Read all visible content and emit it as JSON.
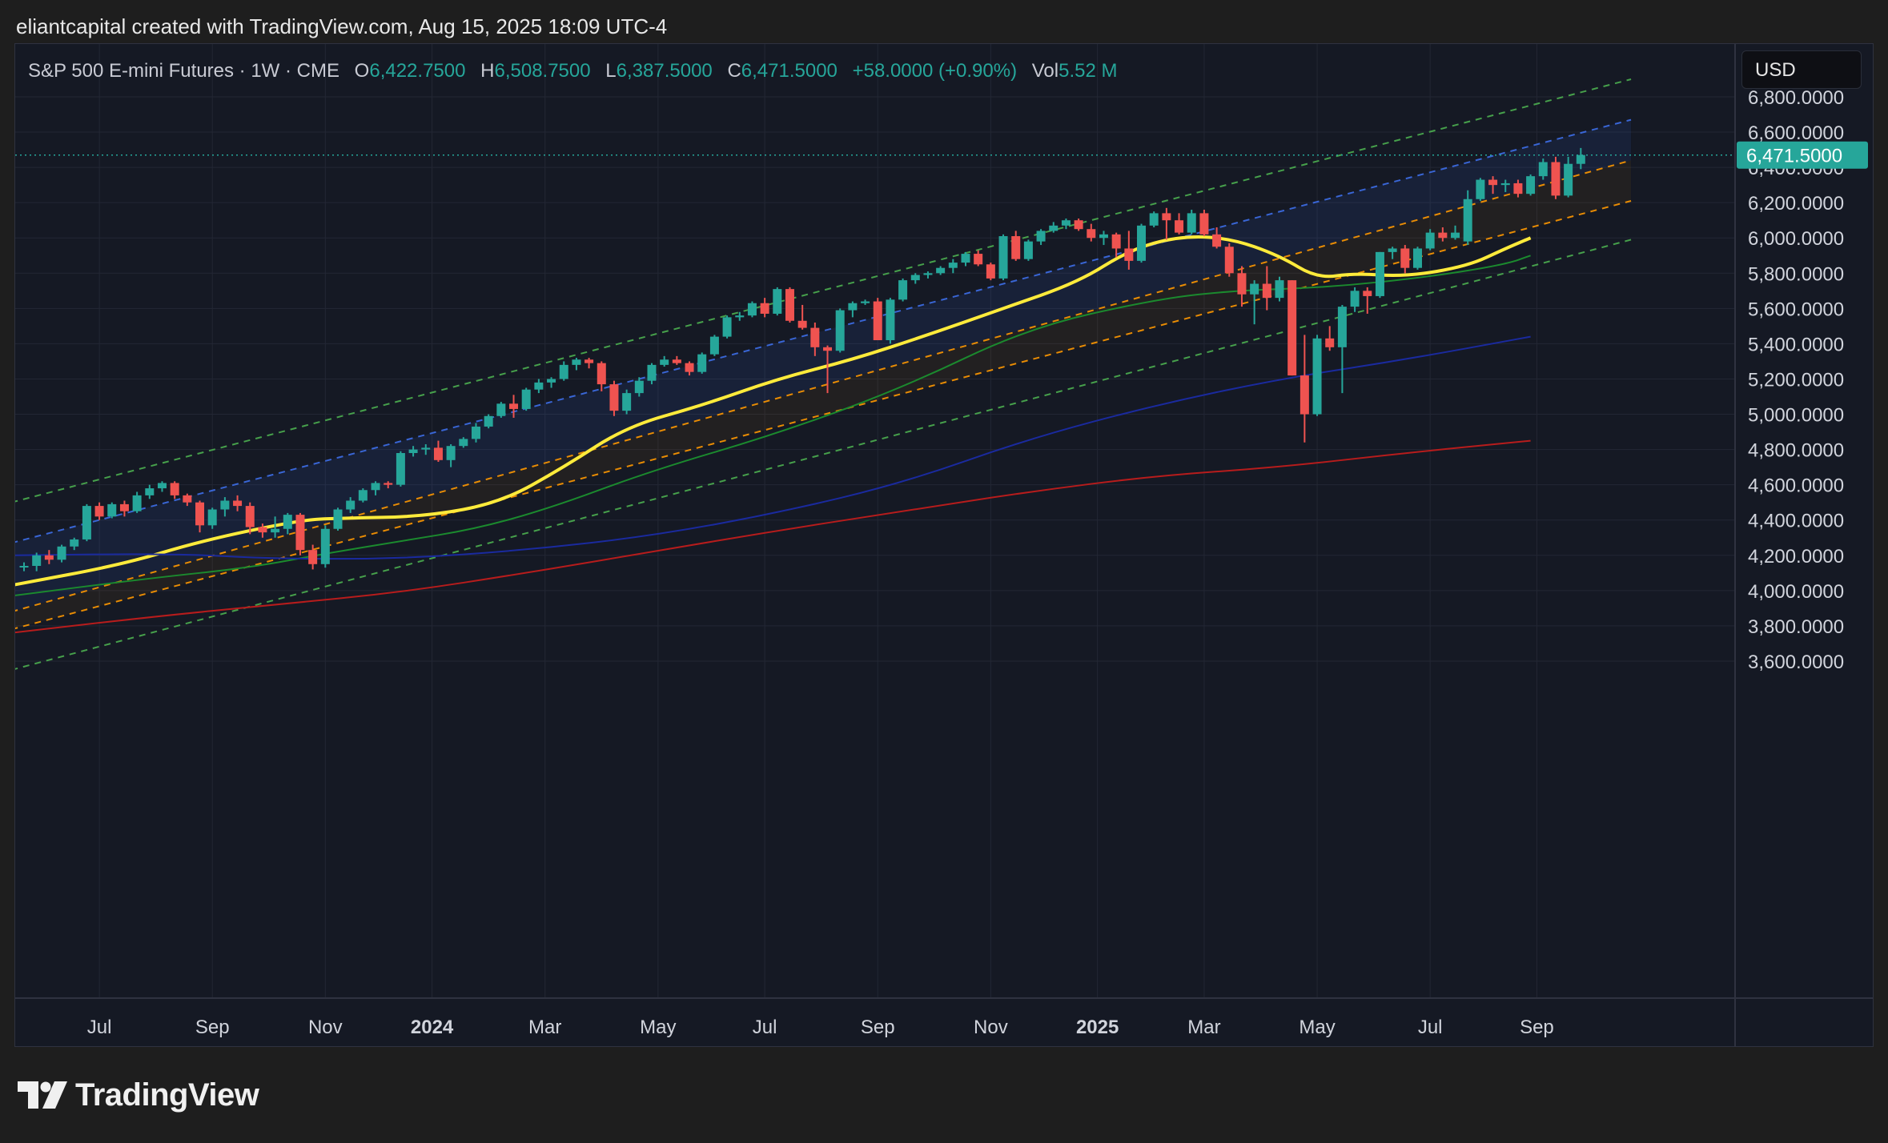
{
  "header": {
    "attribution": "eliantcapital created with TradingView.com, Aug 15, 2025 18:09 UTC-4"
  },
  "legend": {
    "symbol": "S&P 500 E-mini Futures · 1W · CME",
    "open_label": "O",
    "open": "6,422.7500",
    "high_label": "H",
    "high": "6,508.7500",
    "low_label": "L",
    "low": "6,387.5000",
    "close_label": "C",
    "close": "6,471.5000",
    "change": "+58.0000 (+0.90%)",
    "vol_label": "Vol",
    "vol": "5.52 M"
  },
  "currency_button": "USD",
  "last_price_label": "6,471.5000",
  "footer": {
    "brand": "TradingView"
  },
  "colors": {
    "up": "#26a69a",
    "down": "#ef5350",
    "ma20": "#ffeb3b",
    "ma50": "#1b8a2e",
    "ma100": "#1a2a9e",
    "ma200": "#b71c1c"
  },
  "chart_data": {
    "type": "candlestick",
    "interval": "1W",
    "y_axis_ticks": [
      "6,800.0000",
      "6,600.0000",
      "6,400.0000",
      "6,200.0000",
      "6,000.0000",
      "5,800.0000",
      "5,600.0000",
      "5,400.0000",
      "5,200.0000",
      "5,000.0000",
      "4,800.0000",
      "4,600.0000",
      "4,400.0000",
      "4,200.0000",
      "4,000.0000",
      "3,800.0000",
      "3,600.0000"
    ],
    "ylim": [
      3500,
      6950
    ],
    "x_axis_ticks": [
      {
        "label": "Jul",
        "week": 6,
        "bold": false
      },
      {
        "label": "Sep",
        "week": 15,
        "bold": false
      },
      {
        "label": "Nov",
        "week": 24,
        "bold": false
      },
      {
        "label": "2024",
        "week": 32.5,
        "bold": true
      },
      {
        "label": "Mar",
        "week": 41.5,
        "bold": false
      },
      {
        "label": "May",
        "week": 50.5,
        "bold": false
      },
      {
        "label": "Jul",
        "week": 59,
        "bold": false
      },
      {
        "label": "Sep",
        "week": 68,
        "bold": false
      },
      {
        "label": "Nov",
        "week": 77,
        "bold": false
      },
      {
        "label": "2025",
        "week": 85.5,
        "bold": true
      },
      {
        "label": "Mar",
        "week": 94,
        "bold": false
      },
      {
        "label": "May",
        "week": 103,
        "bold": false
      },
      {
        "label": "Jul",
        "week": 112,
        "bold": false
      },
      {
        "label": "Sep",
        "week": 120.5,
        "bold": false
      }
    ],
    "candles": [
      [
        4140,
        4160,
        4110,
        4140
      ],
      [
        4140,
        4215,
        4110,
        4200
      ],
      [
        4200,
        4230,
        4150,
        4175
      ],
      [
        4175,
        4260,
        4160,
        4250
      ],
      [
        4250,
        4300,
        4230,
        4290
      ],
      [
        4290,
        4490,
        4280,
        4480
      ],
      [
        4480,
        4500,
        4400,
        4420
      ],
      [
        4420,
        4500,
        4410,
        4490
      ],
      [
        4490,
        4510,
        4420,
        4450
      ],
      [
        4450,
        4560,
        4440,
        4540
      ],
      [
        4540,
        4600,
        4520,
        4580
      ],
      [
        4580,
        4620,
        4560,
        4610
      ],
      [
        4610,
        4620,
        4520,
        4540
      ],
      [
        4540,
        4550,
        4480,
        4500
      ],
      [
        4500,
        4510,
        4330,
        4370
      ],
      [
        4370,
        4470,
        4350,
        4460
      ],
      [
        4460,
        4530,
        4420,
        4510
      ],
      [
        4510,
        4540,
        4450,
        4480
      ],
      [
        4480,
        4500,
        4320,
        4360
      ],
      [
        4360,
        4380,
        4300,
        4330
      ],
      [
        4330,
        4420,
        4300,
        4350
      ],
      [
        4350,
        4440,
        4320,
        4430
      ],
      [
        4430,
        4440,
        4200,
        4230
      ],
      [
        4230,
        4260,
        4120,
        4150
      ],
      [
        4150,
        4370,
        4130,
        4350
      ],
      [
        4350,
        4470,
        4340,
        4460
      ],
      [
        4460,
        4530,
        4440,
        4510
      ],
      [
        4510,
        4580,
        4500,
        4570
      ],
      [
        4570,
        4620,
        4540,
        4610
      ],
      [
        4610,
        4620,
        4580,
        4600
      ],
      [
        4600,
        4790,
        4590,
        4780
      ],
      [
        4780,
        4820,
        4760,
        4800
      ],
      [
        4800,
        4830,
        4770,
        4810
      ],
      [
        4810,
        4850,
        4730,
        4740
      ],
      [
        4740,
        4830,
        4700,
        4820
      ],
      [
        4820,
        4870,
        4810,
        4860
      ],
      [
        4860,
        4950,
        4840,
        4930
      ],
      [
        4930,
        5000,
        4920,
        4990
      ],
      [
        4990,
        5070,
        4980,
        5060
      ],
      [
        5060,
        5110,
        4980,
        5030
      ],
      [
        5030,
        5150,
        5020,
        5140
      ],
      [
        5140,
        5200,
        5120,
        5180
      ],
      [
        5180,
        5210,
        5150,
        5200
      ],
      [
        5200,
        5300,
        5190,
        5280
      ],
      [
        5280,
        5320,
        5250,
        5310
      ],
      [
        5310,
        5320,
        5260,
        5290
      ],
      [
        5290,
        5300,
        5130,
        5170
      ],
      [
        5170,
        5190,
        4990,
        5020
      ],
      [
        5020,
        5140,
        5000,
        5120
      ],
      [
        5120,
        5210,
        5100,
        5190
      ],
      [
        5190,
        5290,
        5170,
        5280
      ],
      [
        5280,
        5330,
        5270,
        5310
      ],
      [
        5310,
        5330,
        5280,
        5290
      ],
      [
        5290,
        5300,
        5220,
        5240
      ],
      [
        5240,
        5350,
        5230,
        5340
      ],
      [
        5340,
        5450,
        5330,
        5440
      ],
      [
        5440,
        5560,
        5430,
        5550
      ],
      [
        5550,
        5580,
        5530,
        5560
      ],
      [
        5560,
        5640,
        5550,
        5630
      ],
      [
        5630,
        5660,
        5550,
        5570
      ],
      [
        5570,
        5720,
        5560,
        5710
      ],
      [
        5710,
        5720,
        5520,
        5530
      ],
      [
        5530,
        5620,
        5480,
        5490
      ],
      [
        5490,
        5520,
        5330,
        5380
      ],
      [
        5380,
        5390,
        5120,
        5360
      ],
      [
        5360,
        5600,
        5350,
        5590
      ],
      [
        5590,
        5640,
        5550,
        5630
      ],
      [
        5630,
        5650,
        5620,
        5640
      ],
      [
        5640,
        5660,
        5420,
        5420
      ],
      [
        5420,
        5660,
        5400,
        5650
      ],
      [
        5650,
        5770,
        5640,
        5760
      ],
      [
        5760,
        5800,
        5740,
        5790
      ],
      [
        5790,
        5810,
        5770,
        5800
      ],
      [
        5800,
        5840,
        5790,
        5830
      ],
      [
        5830,
        5880,
        5800,
        5860
      ],
      [
        5860,
        5920,
        5840,
        5910
      ],
      [
        5910,
        5930,
        5840,
        5850
      ],
      [
        5850,
        5860,
        5760,
        5770
      ],
      [
        5770,
        6020,
        5760,
        6010
      ],
      [
        6010,
        6040,
        5870,
        5880
      ],
      [
        5880,
        5990,
        5870,
        5980
      ],
      [
        5980,
        6050,
        5960,
        6040
      ],
      [
        6040,
        6090,
        6030,
        6070
      ],
      [
        6070,
        6110,
        6050,
        6100
      ],
      [
        6100,
        6110,
        6040,
        6050
      ],
      [
        6050,
        6080,
        5980,
        6000
      ],
      [
        6000,
        6040,
        5960,
        6020
      ],
      [
        6020,
        6030,
        5890,
        5940
      ],
      [
        5940,
        6040,
        5820,
        5870
      ],
      [
        5870,
        6080,
        5860,
        6070
      ],
      [
        6070,
        6150,
        6060,
        6140
      ],
      [
        6140,
        6170,
        5990,
        6100
      ],
      [
        6100,
        6140,
        6020,
        6030
      ],
      [
        6030,
        6160,
        6020,
        6140
      ],
      [
        6140,
        6160,
        6010,
        6020
      ],
      [
        6020,
        6060,
        5940,
        5950
      ],
      [
        5950,
        5970,
        5780,
        5800
      ],
      [
        5800,
        5840,
        5610,
        5680
      ],
      [
        5680,
        5760,
        5510,
        5740
      ],
      [
        5740,
        5840,
        5590,
        5660
      ],
      [
        5660,
        5780,
        5640,
        5760
      ],
      [
        5760,
        5760,
        5220,
        5220
      ],
      [
        5220,
        5450,
        4840,
        5000
      ],
      [
        5000,
        5450,
        4990,
        5430
      ],
      [
        5430,
        5500,
        5360,
        5380
      ],
      [
        5380,
        5620,
        5120,
        5610
      ],
      [
        5610,
        5720,
        5580,
        5700
      ],
      [
        5700,
        5720,
        5570,
        5670
      ],
      [
        5670,
        5920,
        5660,
        5920
      ],
      [
        5920,
        5950,
        5880,
        5940
      ],
      [
        5940,
        5960,
        5800,
        5830
      ],
      [
        5830,
        5950,
        5820,
        5940
      ],
      [
        5940,
        6050,
        5930,
        6030
      ],
      [
        6030,
        6060,
        5980,
        6000
      ],
      [
        6000,
        6070,
        5990,
        6030
      ],
      [
        5980,
        6270,
        5960,
        6220
      ],
      [
        6220,
        6340,
        6210,
        6330
      ],
      [
        6330,
        6350,
        6250,
        6300
      ],
      [
        6300,
        6330,
        6260,
        6310
      ],
      [
        6310,
        6330,
        6230,
        6250
      ],
      [
        6250,
        6360,
        6240,
        6350
      ],
      [
        6350,
        6450,
        6330,
        6430
      ],
      [
        6430,
        6460,
        6220,
        6240
      ],
      [
        6240,
        6460,
        6230,
        6420
      ],
      [
        6420,
        6510,
        6390,
        6470
      ]
    ],
    "channel": {
      "start_week": -1,
      "end_week": 128,
      "lines": [
        {
          "name": "outer-upper",
          "start": 4500,
          "end": 6900,
          "color": "#4caf50",
          "dash": "8,7"
        },
        {
          "name": "inner-upper",
          "start": 4270,
          "end": 6670,
          "color": "#3d6ee8",
          "dash": "8,7"
        },
        {
          "name": "middle-upper",
          "start": 3880,
          "end": 6440,
          "color": "#ff9800",
          "dash": "8,7"
        },
        {
          "name": "middle-lower",
          "start": 3780,
          "end": 6210,
          "color": "#ff9800",
          "dash": "8,7"
        },
        {
          "name": "outer-lower",
          "start": 3550,
          "end": 5990,
          "color": "#4caf50",
          "dash": "8,7"
        }
      ]
    },
    "moving_averages": [
      {
        "name": "MA20",
        "color": "#ffeb3b",
        "width": 4,
        "points": [
          [
            -1,
            4030
          ],
          [
            8,
            4150
          ],
          [
            14,
            4280
          ],
          [
            22,
            4400
          ],
          [
            25,
            4410
          ],
          [
            32,
            4420
          ],
          [
            38,
            4500
          ],
          [
            43,
            4700
          ],
          [
            48,
            4930
          ],
          [
            54,
            5050
          ],
          [
            60,
            5200
          ],
          [
            66,
            5310
          ],
          [
            72,
            5450
          ],
          [
            78,
            5600
          ],
          [
            84,
            5750
          ],
          [
            88,
            5930
          ],
          [
            92,
            6010
          ],
          [
            96,
            6000
          ],
          [
            100,
            5900
          ],
          [
            103,
            5770
          ],
          [
            106,
            5800
          ],
          [
            110,
            5780
          ],
          [
            115,
            5840
          ],
          [
            118,
            5940
          ],
          [
            120,
            6000
          ]
        ]
      },
      {
        "name": "MA50",
        "color": "#1b8a2e",
        "width": 2,
        "points": [
          [
            -1,
            3970
          ],
          [
            10,
            4070
          ],
          [
            18,
            4130
          ],
          [
            24,
            4210
          ],
          [
            30,
            4280
          ],
          [
            36,
            4350
          ],
          [
            42,
            4470
          ],
          [
            50,
            4680
          ],
          [
            60,
            4890
          ],
          [
            70,
            5150
          ],
          [
            80,
            5490
          ],
          [
            90,
            5650
          ],
          [
            96,
            5700
          ],
          [
            104,
            5720
          ],
          [
            112,
            5780
          ],
          [
            118,
            5850
          ],
          [
            120,
            5900
          ]
        ]
      },
      {
        "name": "MA100",
        "color": "#1a2a9e",
        "width": 2,
        "points": [
          [
            -1,
            4200
          ],
          [
            12,
            4210
          ],
          [
            20,
            4180
          ],
          [
            30,
            4180
          ],
          [
            40,
            4230
          ],
          [
            50,
            4310
          ],
          [
            60,
            4440
          ],
          [
            70,
            4610
          ],
          [
            80,
            4860
          ],
          [
            90,
            5050
          ],
          [
            100,
            5200
          ],
          [
            110,
            5310
          ],
          [
            120,
            5440
          ]
        ]
      },
      {
        "name": "MA200",
        "color": "#b71c1c",
        "width": 2,
        "points": [
          [
            -1,
            3760
          ],
          [
            10,
            3850
          ],
          [
            20,
            3920
          ],
          [
            30,
            3990
          ],
          [
            40,
            4100
          ],
          [
            50,
            4220
          ],
          [
            60,
            4340
          ],
          [
            70,
            4450
          ],
          [
            80,
            4560
          ],
          [
            90,
            4650
          ],
          [
            100,
            4700
          ],
          [
            110,
            4780
          ],
          [
            120,
            4850
          ]
        ]
      }
    ]
  }
}
